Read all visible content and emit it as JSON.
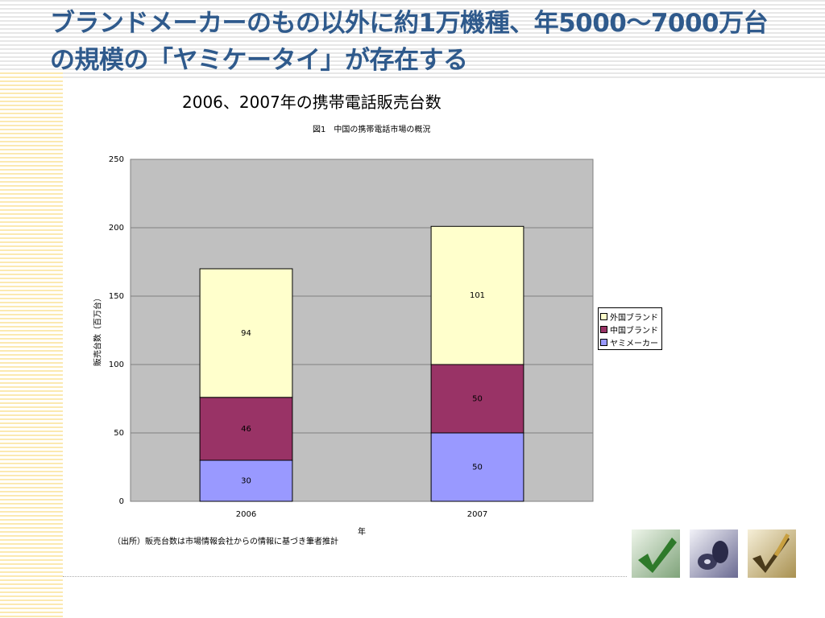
{
  "slide": {
    "title": "ブランドメーカーのもの以外に約1万機種、年5000～7000万台の規模の「ヤミケータイ」が存在する",
    "subtitle": "2006、2007年の携帯電話販売台数"
  },
  "chart_data": {
    "type": "bar",
    "stacked": true,
    "title": "図1　中国の携帯電話市場の概況",
    "xlabel": "年",
    "ylabel": "販売台数（百万台）",
    "categories": [
      "2006",
      "2007"
    ],
    "series": [
      {
        "name": "ヤミメーカー",
        "values": [
          30,
          50
        ],
        "color": "#9999ff"
      },
      {
        "name": "中国ブランド",
        "values": [
          46,
          50
        ],
        "color": "#993366"
      },
      {
        "name": "外国ブランド",
        "values": [
          94,
          101
        ],
        "color": "#ffffcc"
      }
    ],
    "ylim": [
      0,
      250
    ],
    "yticks": [
      0,
      50,
      100,
      150,
      200,
      250
    ],
    "grid": true,
    "legend": "right",
    "plot_background": "#c0c0c0"
  },
  "note": "（出所）販売台数は市場情報会社からの情報に基づき筆者推計",
  "legend_items": [
    {
      "label": "外国ブランド",
      "color": "#ffffcc"
    },
    {
      "label": "中国ブランド",
      "color": "#993366"
    },
    {
      "label": "ヤミメーカー",
      "color": "#9999ff"
    }
  ]
}
